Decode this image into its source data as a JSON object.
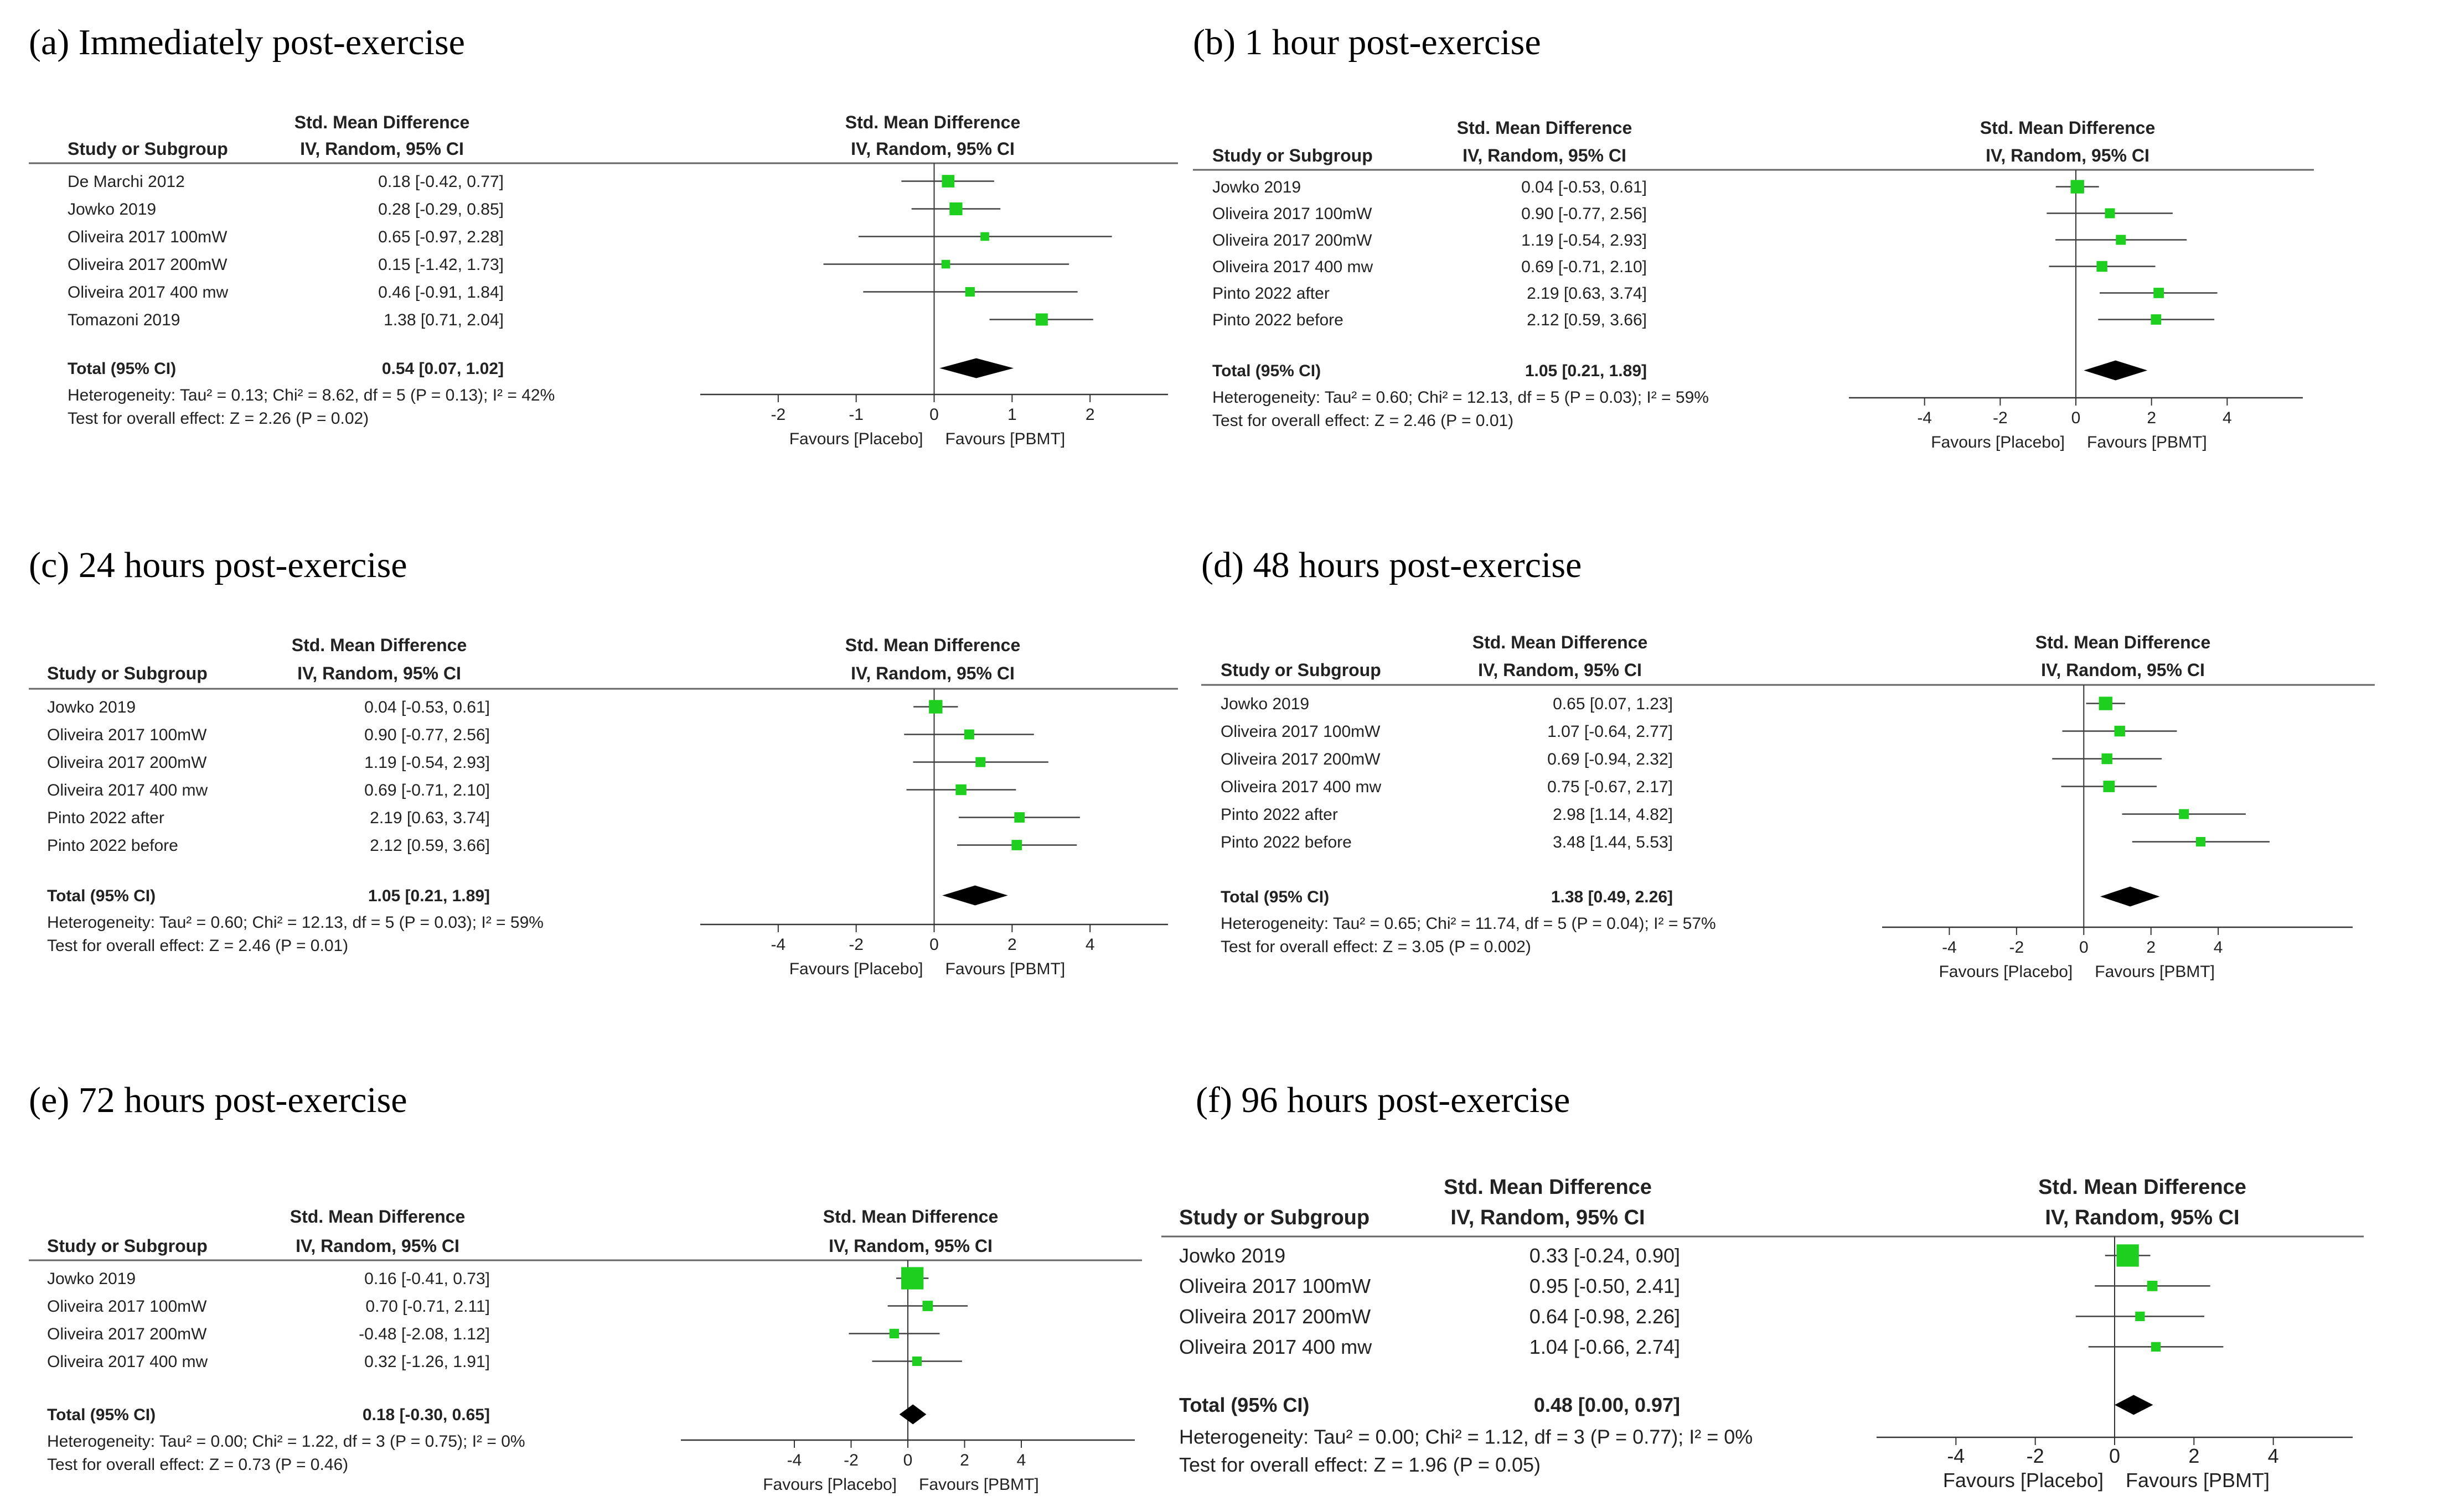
{
  "colors": {
    "marker": "#1fcf1f",
    "diamond": "#000000",
    "ci_line": "#404040",
    "text": "#222222"
  },
  "headers": {
    "study": "Study or Subgroup",
    "smd_line1": "Std. Mean Difference",
    "smd_line2": "IV, Random, 95% CI",
    "favours_left": "Favours [Placebo]",
    "favours_right": "Favours [PBMT]"
  },
  "chart_data": [
    {
      "type": "forest",
      "title": "(a) Immediately post-exercise",
      "xlim": [
        -3,
        3
      ],
      "ticks": [
        -2,
        -1,
        0,
        1,
        2
      ],
      "studies": [
        {
          "name": "De Marchi 2012",
          "ci_text": "0.18 [-0.42, 0.77]",
          "smd": 0.18,
          "lo": -0.42,
          "hi": 0.77,
          "weight": 19
        },
        {
          "name": "Jowko 2019",
          "ci_text": "0.28 [-0.29, 0.85]",
          "smd": 0.28,
          "lo": -0.29,
          "hi": 0.85,
          "weight": 20
        },
        {
          "name": "Oliveira 2017 100mW",
          "ci_text": "0.65 [-0.97, 2.28]",
          "smd": 0.65,
          "lo": -0.97,
          "hi": 2.28,
          "weight": 9
        },
        {
          "name": "Oliveira 2017 200mW",
          "ci_text": "0.15 [-1.42, 1.73]",
          "smd": 0.15,
          "lo": -1.42,
          "hi": 1.73,
          "weight": 9
        },
        {
          "name": "Oliveira 2017 400 mw",
          "ci_text": "0.46 [-0.91, 1.84]",
          "smd": 0.46,
          "lo": -0.91,
          "hi": 1.84,
          "weight": 11
        },
        {
          "name": "Tomazoni 2019",
          "ci_text": "1.38 [0.71, 2.04]",
          "smd": 1.38,
          "lo": 0.71,
          "hi": 2.04,
          "weight": 18
        }
      ],
      "total": {
        "label": "Total (95% CI)",
        "ci_text": "0.54 [0.07, 1.02]",
        "smd": 0.54,
        "lo": 0.07,
        "hi": 1.02
      },
      "heterogeneity": "Heterogeneity: Tau² = 0.13; Chi² = 8.62, df = 5 (P = 0.13); I² = 42%",
      "overall_test": "Test for overall effect: Z = 2.26 (P = 0.02)"
    },
    {
      "type": "forest",
      "title": "(b) 1 hour post-exercise",
      "xlim": [
        -6,
        6
      ],
      "ticks": [
        -4,
        -2,
        0,
        2,
        4
      ],
      "studies": [
        {
          "name": "Jowko 2019",
          "ci_text": "0.04 [-0.53, 0.61]",
          "smd": 0.04,
          "lo": -0.53,
          "hi": 0.61,
          "weight": 22
        },
        {
          "name": "Oliveira 2017 100mW",
          "ci_text": "0.90 [-0.77, 2.56]",
          "smd": 0.9,
          "lo": -0.77,
          "hi": 2.56,
          "weight": 12
        },
        {
          "name": "Oliveira 2017 200mW",
          "ci_text": "1.19 [-0.54, 2.93]",
          "smd": 1.19,
          "lo": -0.54,
          "hi": 2.93,
          "weight": 12
        },
        {
          "name": "Oliveira 2017 400 mw",
          "ci_text": "0.69 [-0.71, 2.10]",
          "smd": 0.69,
          "lo": -0.71,
          "hi": 2.1,
          "weight": 14
        },
        {
          "name": "Pinto 2022 after",
          "ci_text": "2.19 [0.63, 3.74]",
          "smd": 2.19,
          "lo": 0.63,
          "hi": 3.74,
          "weight": 13
        },
        {
          "name": "Pinto 2022 before",
          "ci_text": "2.12 [0.59, 3.66]",
          "smd": 2.12,
          "lo": 0.59,
          "hi": 3.66,
          "weight": 13
        }
      ],
      "total": {
        "label": "Total (95% CI)",
        "ci_text": "1.05 [0.21, 1.89]",
        "smd": 1.05,
        "lo": 0.21,
        "hi": 1.89
      },
      "heterogeneity": "Heterogeneity: Tau² = 0.60; Chi² = 12.13, df = 5 (P = 0.03); I² = 59%",
      "overall_test": "Test for overall effect: Z = 2.46 (P = 0.01)"
    },
    {
      "type": "forest",
      "title": "(c) 24 hours post-exercise",
      "xlim": [
        -6,
        6
      ],
      "ticks": [
        -4,
        -2,
        0,
        2,
        4
      ],
      "studies": [
        {
          "name": "Jowko 2019",
          "ci_text": "0.04 [-0.53, 0.61]",
          "smd": 0.04,
          "lo": -0.53,
          "hi": 0.61,
          "weight": 22
        },
        {
          "name": "Oliveira 2017 100mW",
          "ci_text": "0.90 [-0.77, 2.56]",
          "smd": 0.9,
          "lo": -0.77,
          "hi": 2.56,
          "weight": 12
        },
        {
          "name": "Oliveira 2017 200mW",
          "ci_text": "1.19 [-0.54, 2.93]",
          "smd": 1.19,
          "lo": -0.54,
          "hi": 2.93,
          "weight": 12
        },
        {
          "name": "Oliveira 2017 400 mw",
          "ci_text": "0.69 [-0.71, 2.10]",
          "smd": 0.69,
          "lo": -0.71,
          "hi": 2.1,
          "weight": 14
        },
        {
          "name": "Pinto 2022 after",
          "ci_text": "2.19 [0.63, 3.74]",
          "smd": 2.19,
          "lo": 0.63,
          "hi": 3.74,
          "weight": 13
        },
        {
          "name": "Pinto 2022 before",
          "ci_text": "2.12 [0.59, 3.66]",
          "smd": 2.12,
          "lo": 0.59,
          "hi": 3.66,
          "weight": 13
        }
      ],
      "total": {
        "label": "Total (95% CI)",
        "ci_text": "1.05 [0.21, 1.89]",
        "smd": 1.05,
        "lo": 0.21,
        "hi": 1.89
      },
      "heterogeneity": "Heterogeneity: Tau² = 0.60; Chi² = 12.13, df = 5 (P = 0.03); I² = 59%",
      "overall_test": "Test for overall effect: Z = 2.46 (P = 0.01)"
    },
    {
      "type": "forest",
      "title": "(d) 48 hours post-exercise",
      "xlim": [
        -6,
        8
      ],
      "ticks": [
        -4,
        -2,
        0,
        2,
        4
      ],
      "studies": [
        {
          "name": "Jowko 2019",
          "ci_text": "0.65 [0.07, 1.23]",
          "smd": 0.65,
          "lo": 0.07,
          "hi": 1.23,
          "weight": 22
        },
        {
          "name": "Oliveira 2017 100mW",
          "ci_text": "1.07 [-0.64, 2.77]",
          "smd": 1.07,
          "lo": -0.64,
          "hi": 2.77,
          "weight": 14
        },
        {
          "name": "Oliveira 2017 200mW",
          "ci_text": "0.69 [-0.94, 2.32]",
          "smd": 0.69,
          "lo": -0.94,
          "hi": 2.32,
          "weight": 14
        },
        {
          "name": "Oliveira 2017 400 mw",
          "ci_text": "0.75 [-0.67, 2.17]",
          "smd": 0.75,
          "lo": -0.67,
          "hi": 2.17,
          "weight": 16
        },
        {
          "name": "Pinto 2022 after",
          "ci_text": "2.98 [1.14, 4.82]",
          "smd": 2.98,
          "lo": 1.14,
          "hi": 4.82,
          "weight": 12
        },
        {
          "name": "Pinto 2022 before",
          "ci_text": "3.48 [1.44, 5.53]",
          "smd": 3.48,
          "lo": 1.44,
          "hi": 5.53,
          "weight": 11
        }
      ],
      "total": {
        "label": "Total (95% CI)",
        "ci_text": "1.38 [0.49, 2.26]",
        "smd": 1.38,
        "lo": 0.49,
        "hi": 2.26
      },
      "heterogeneity": "Heterogeneity: Tau² = 0.65; Chi² = 11.74, df = 5 (P = 0.04); I² = 57%",
      "overall_test": "Test for overall effect: Z = 3.05 (P = 0.002)"
    },
    {
      "type": "forest",
      "title": "(e) 72 hours post-exercise",
      "xlim": [
        -8,
        8
      ],
      "ticks": [
        -4,
        -2,
        0,
        2,
        4
      ],
      "studies": [
        {
          "name": "Jowko 2019",
          "ci_text": "0.16 [-0.41, 0.73]",
          "smd": 0.16,
          "lo": -0.41,
          "hi": 0.73,
          "weight": 60
        },
        {
          "name": "Oliveira 2017 100mW",
          "ci_text": "0.70 [-0.71, 2.11]",
          "smd": 0.7,
          "lo": -0.71,
          "hi": 2.11,
          "weight": 13
        },
        {
          "name": "Oliveira 2017 200mW",
          "ci_text": "-0.48 [-2.08, 1.12]",
          "smd": -0.48,
          "lo": -2.08,
          "hi": 1.12,
          "weight": 11
        },
        {
          "name": "Oliveira 2017 400 mw",
          "ci_text": "0.32 [-1.26, 1.91]",
          "smd": 0.32,
          "lo": -1.26,
          "hi": 1.91,
          "weight": 11
        }
      ],
      "total": {
        "label": "Total (95% CI)",
        "ci_text": "0.18 [-0.30, 0.65]",
        "smd": 0.18,
        "lo": -0.3,
        "hi": 0.65
      },
      "heterogeneity": "Heterogeneity: Tau² = 0.00; Chi² = 1.22, df = 3 (P = 0.75); I² = 0%",
      "overall_test": "Test for overall effect: Z = 0.73 (P = 0.46)"
    },
    {
      "type": "forest",
      "title": "(f) 96 hours post-exercise",
      "xlim": [
        -6,
        6
      ],
      "ticks": [
        -4,
        -2,
        0,
        2,
        4
      ],
      "studies": [
        {
          "name": "Jowko 2019",
          "ci_text": "0.33 [-0.24, 0.90]",
          "smd": 0.33,
          "lo": -0.24,
          "hi": 0.9,
          "weight": 60
        },
        {
          "name": "Oliveira 2017 100mW",
          "ci_text": "0.95 [-0.50, 2.41]",
          "smd": 0.95,
          "lo": -0.5,
          "hi": 2.41,
          "weight": 13
        },
        {
          "name": "Oliveira 2017 200mW",
          "ci_text": "0.64 [-0.98, 2.26]",
          "smd": 0.64,
          "lo": -0.98,
          "hi": 2.26,
          "weight": 11
        },
        {
          "name": "Oliveira 2017 400 mw",
          "ci_text": "1.04 [-0.66, 2.74]",
          "smd": 1.04,
          "lo": -0.66,
          "hi": 2.74,
          "weight": 11
        }
      ],
      "total": {
        "label": "Total (95% CI)",
        "ci_text": "0.48 [0.00, 0.97]",
        "smd": 0.48,
        "lo": 0.0,
        "hi": 0.97
      },
      "heterogeneity": "Heterogeneity: Tau² = 0.00; Chi² = 1.12, df = 3 (P = 0.77); I² = 0%",
      "overall_test": "Test for overall effect: Z = 1.96 (P = 0.05)"
    }
  ]
}
